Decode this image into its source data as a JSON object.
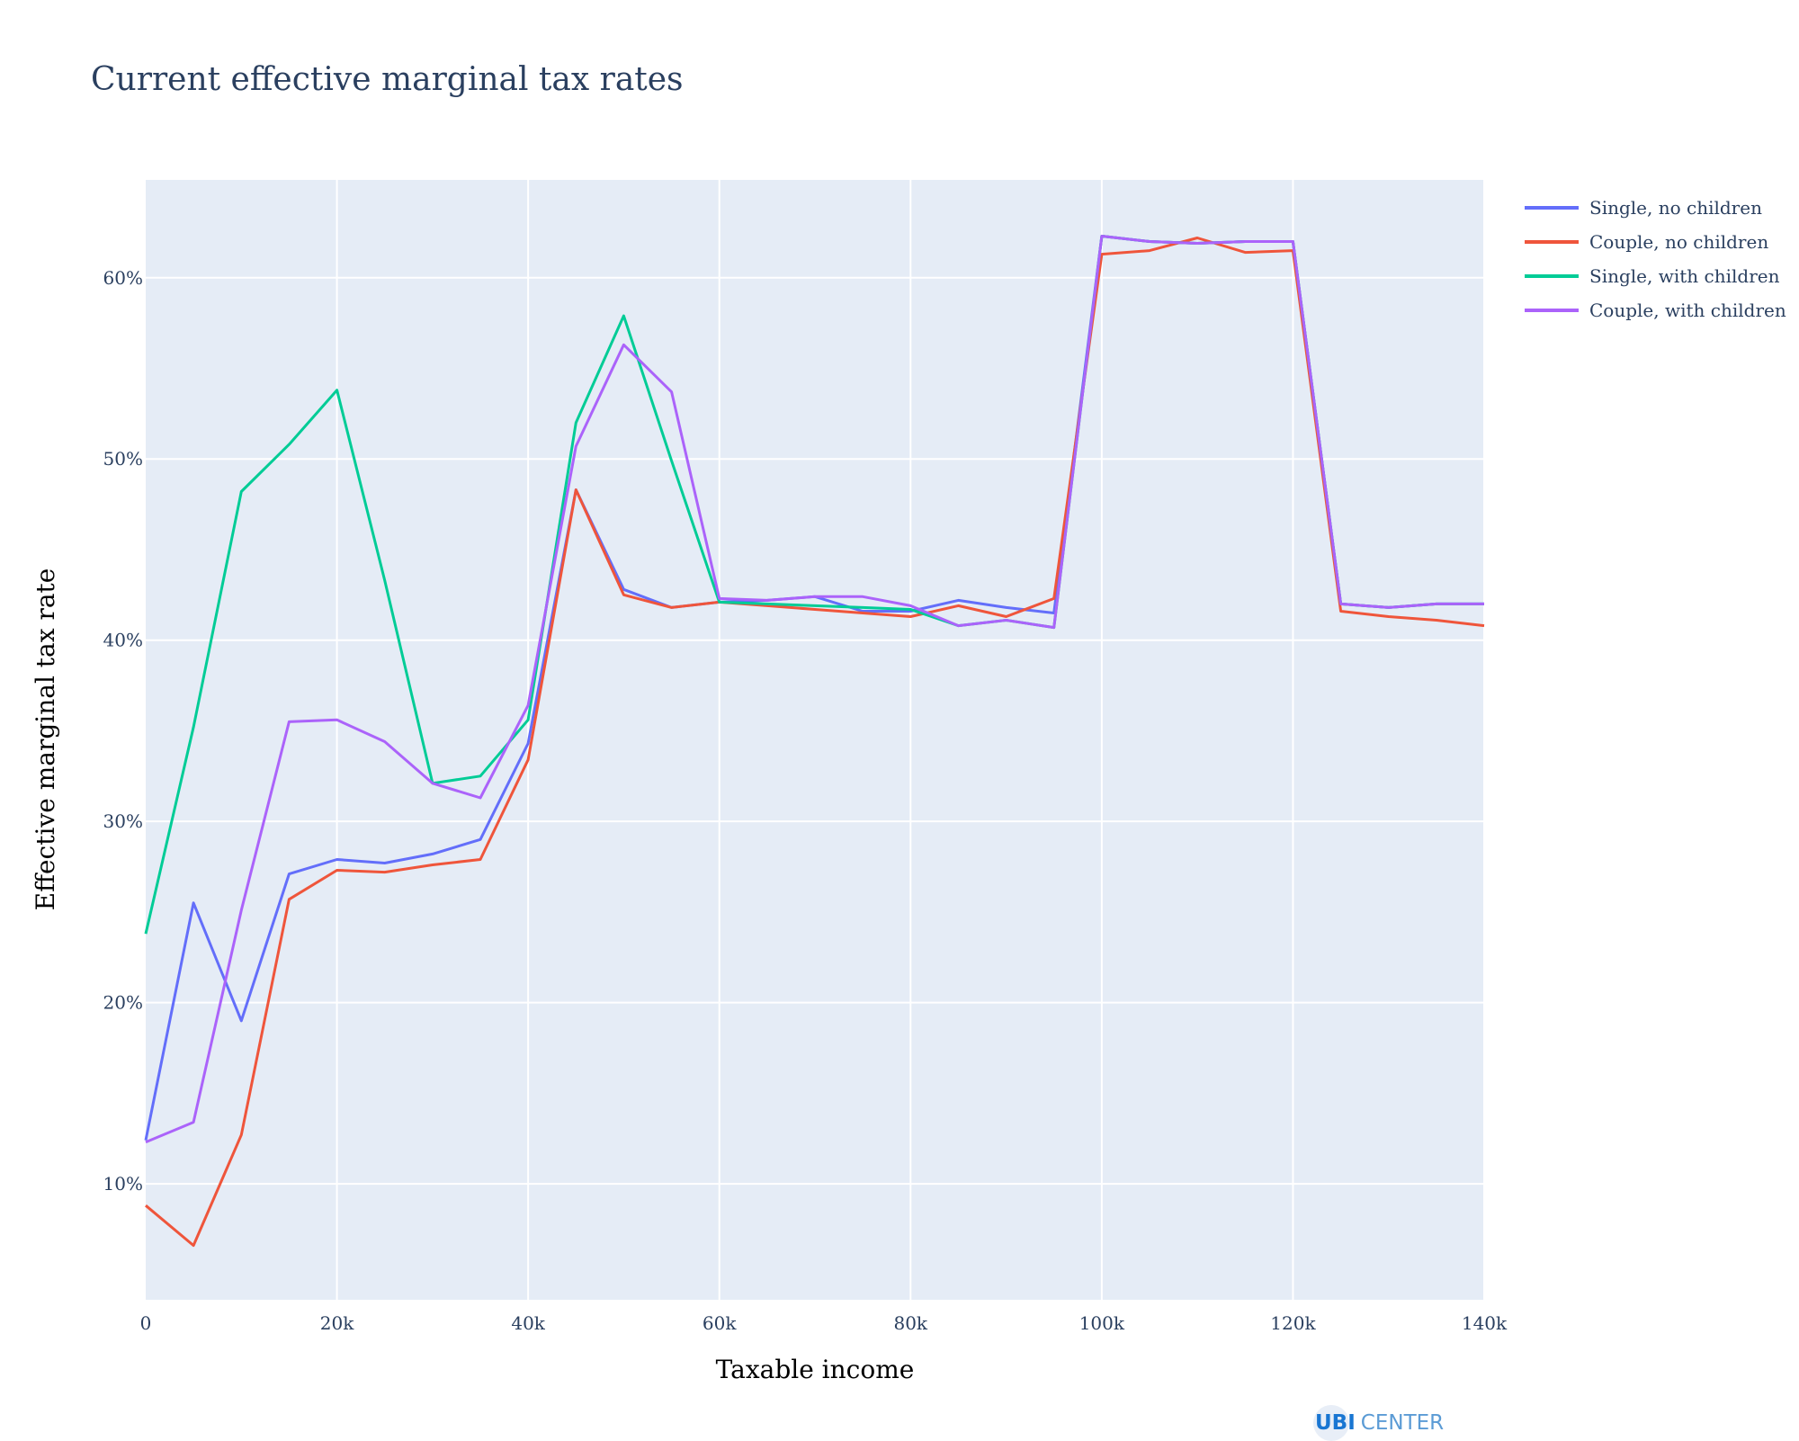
{
  "chart_data": {
    "type": "line",
    "title": "Current effective marginal tax rates",
    "xlabel": "Taxable income",
    "ylabel": "Effective marginal tax rate",
    "xlim": [
      0,
      140000
    ],
    "ylim": [
      0.036,
      0.654
    ],
    "x_ticks": [
      0,
      20000,
      40000,
      60000,
      80000,
      100000,
      120000,
      140000
    ],
    "x_tick_labels": [
      "0",
      "20k",
      "40k",
      "60k",
      "80k",
      "100k",
      "120k",
      "140k"
    ],
    "y_ticks": [
      0.1,
      0.2,
      0.3,
      0.4,
      0.5,
      0.6
    ],
    "y_tick_labels": [
      "10%",
      "20%",
      "30%",
      "40%",
      "50%",
      "60%"
    ],
    "grid": true,
    "legend_position": "top-right",
    "background": "#e5ecf6",
    "series": [
      {
        "name": "Single, no children",
        "color": "#636efa",
        "points": [
          [
            0,
            0.124
          ],
          [
            5000,
            0.255
          ],
          [
            10000,
            0.19
          ],
          [
            15000,
            0.271
          ],
          [
            20000,
            0.279
          ],
          [
            25000,
            0.277
          ],
          [
            30000,
            0.282
          ],
          [
            35000,
            0.29
          ],
          [
            40000,
            0.343
          ],
          [
            45000,
            0.483
          ],
          [
            50000,
            0.428
          ],
          [
            55000,
            0.418
          ],
          [
            60000,
            0.421
          ],
          [
            65000,
            0.422
          ],
          [
            70000,
            0.424
          ],
          [
            75000,
            0.416
          ],
          [
            80000,
            0.416
          ],
          [
            85000,
            0.422
          ],
          [
            90000,
            0.418
          ],
          [
            95000,
            0.415
          ],
          [
            100000,
            0.623
          ],
          [
            105000,
            0.62
          ],
          [
            110000,
            0.619
          ],
          [
            115000,
            0.62
          ],
          [
            120000,
            0.62
          ],
          [
            125000,
            0.42
          ],
          [
            130000,
            0.418
          ],
          [
            135000,
            0.42
          ],
          [
            140000,
            0.42
          ]
        ]
      },
      {
        "name": "Couple, no children",
        "color": "#ef553b",
        "points": [
          [
            0,
            0.088
          ],
          [
            5000,
            0.066
          ],
          [
            10000,
            0.127
          ],
          [
            15000,
            0.257
          ],
          [
            20000,
            0.273
          ],
          [
            25000,
            0.272
          ],
          [
            30000,
            0.276
          ],
          [
            35000,
            0.279
          ],
          [
            40000,
            0.334
          ],
          [
            45000,
            0.483
          ],
          [
            50000,
            0.425
          ],
          [
            55000,
            0.418
          ],
          [
            60000,
            0.421
          ],
          [
            65000,
            0.419
          ],
          [
            70000,
            0.417
          ],
          [
            75000,
            0.415
          ],
          [
            80000,
            0.413
          ],
          [
            85000,
            0.419
          ],
          [
            90000,
            0.413
          ],
          [
            95000,
            0.423
          ],
          [
            100000,
            0.613
          ],
          [
            105000,
            0.615
          ],
          [
            110000,
            0.622
          ],
          [
            115000,
            0.614
          ],
          [
            120000,
            0.615
          ],
          [
            125000,
            0.416
          ],
          [
            130000,
            0.413
          ],
          [
            135000,
            0.411
          ],
          [
            140000,
            0.408
          ]
        ]
      },
      {
        "name": "Single, with children",
        "color": "#00cc96",
        "points": [
          [
            0,
            0.238
          ],
          [
            5000,
            0.352
          ],
          [
            10000,
            0.482
          ],
          [
            15000,
            0.508
          ],
          [
            20000,
            0.538
          ],
          [
            25000,
            0.433
          ],
          [
            30000,
            0.321
          ],
          [
            35000,
            0.325
          ],
          [
            40000,
            0.356
          ],
          [
            45000,
            0.52
          ],
          [
            50000,
            0.579
          ],
          [
            55000,
            0.499
          ],
          [
            60000,
            0.421
          ],
          [
            65000,
            0.42
          ],
          [
            70000,
            0.419
          ],
          [
            75000,
            0.418
          ],
          [
            80000,
            0.417
          ],
          [
            85000,
            0.408
          ],
          [
            90000,
            0.411
          ],
          [
            95000,
            0.407
          ],
          [
            100000,
            0.623
          ],
          [
            105000,
            0.62
          ],
          [
            110000,
            0.619
          ],
          [
            115000,
            0.62
          ],
          [
            120000,
            0.62
          ],
          [
            125000,
            0.42
          ],
          [
            130000,
            0.418
          ],
          [
            135000,
            0.42
          ],
          [
            140000,
            0.42
          ]
        ]
      },
      {
        "name": "Couple, with children",
        "color": "#ab63fa",
        "points": [
          [
            0,
            0.123
          ],
          [
            5000,
            0.134
          ],
          [
            10000,
            0.251
          ],
          [
            15000,
            0.355
          ],
          [
            20000,
            0.356
          ],
          [
            25000,
            0.344
          ],
          [
            30000,
            0.321
          ],
          [
            35000,
            0.313
          ],
          [
            40000,
            0.364
          ],
          [
            45000,
            0.507
          ],
          [
            50000,
            0.563
          ],
          [
            55000,
            0.537
          ],
          [
            60000,
            0.423
          ],
          [
            65000,
            0.422
          ],
          [
            70000,
            0.424
          ],
          [
            75000,
            0.424
          ],
          [
            80000,
            0.419
          ],
          [
            85000,
            0.408
          ],
          [
            90000,
            0.411
          ],
          [
            95000,
            0.407
          ],
          [
            100000,
            0.623
          ],
          [
            105000,
            0.62
          ],
          [
            110000,
            0.619
          ],
          [
            115000,
            0.62
          ],
          [
            120000,
            0.62
          ],
          [
            125000,
            0.42
          ],
          [
            130000,
            0.418
          ],
          [
            135000,
            0.42
          ],
          [
            140000,
            0.42
          ]
        ]
      }
    ]
  },
  "logo": {
    "ubi": "UBI",
    "center": "CENTER"
  }
}
